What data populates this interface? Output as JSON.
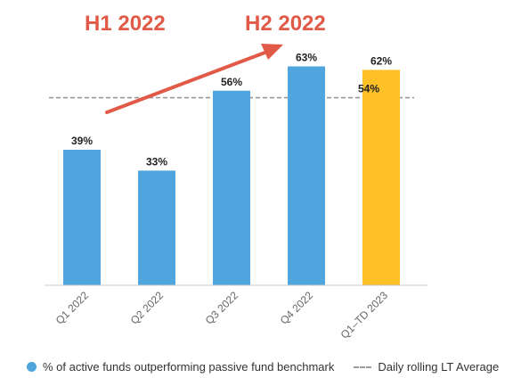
{
  "annotations": {
    "left": "H1 2022",
    "right": "H2 2022"
  },
  "colors": {
    "bar": "#4fa5de",
    "highlight": "#fdc027",
    "reference_line": "#9a9a9a",
    "annotation": "#e05a47",
    "axis": "#c8c8c8"
  },
  "chart_data": {
    "type": "bar",
    "categories": [
      "Q1 2022",
      "Q2 2022",
      "Q3 2022",
      "Q4 2022",
      "Q1–TD 2023"
    ],
    "series": [
      {
        "name": "% of active funds outperforming passive fund benchmark",
        "values": [
          39,
          33,
          56,
          63,
          62
        ],
        "data_labels": [
          "39%",
          "33%",
          "56%",
          "63%",
          "62%"
        ],
        "highlight_index": 4
      }
    ],
    "reference_lines": [
      {
        "name": "Daily rolling LT Average",
        "value": 54,
        "label": "54%"
      }
    ],
    "ylim": [
      0,
      68
    ],
    "grid": false,
    "legend_position": "bottom",
    "legend": [
      "% of active funds outperforming passive fund benchmark",
      "Daily rolling LT Average"
    ]
  }
}
